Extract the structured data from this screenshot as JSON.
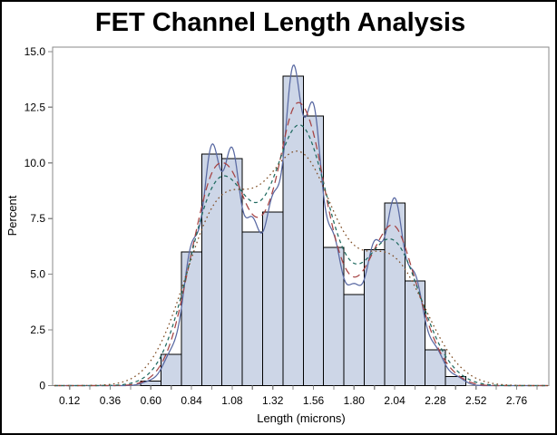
{
  "window": {
    "title": "FET Channel Length Analysis"
  },
  "chart_data": {
    "type": "bar",
    "subtype": "histogram-with-density-curves",
    "title": "FET Channel Length Analysis",
    "xlabel": "Length (microns)",
    "ylabel": "Percent",
    "grid": false,
    "legend": "none",
    "bin_width": 0.12,
    "bin_midpoints": [
      0.6,
      0.72,
      0.84,
      0.96,
      1.08,
      1.2,
      1.32,
      1.44,
      1.56,
      1.68,
      1.8,
      1.92,
      2.04,
      2.16,
      2.28,
      2.4
    ],
    "bin_percents": [
      0.2,
      1.4,
      6.0,
      10.4,
      10.2,
      6.9,
      7.8,
      13.9,
      12.1,
      6.2,
      4.1,
      6.1,
      8.2,
      4.7,
      1.6,
      0.4
    ],
    "x_axis": {
      "min": 0.02,
      "max": 2.95,
      "minor_tick_step": 0.12,
      "minor_tick_first": 0.12,
      "minor_tick_last": 2.88,
      "labels": [
        "0.12",
        "0.36",
        "0.60",
        "0.84",
        "1.08",
        "1.32",
        "1.56",
        "1.80",
        "2.04",
        "2.28",
        "2.52",
        "2.76"
      ],
      "label_values": [
        0.12,
        0.36,
        0.6,
        0.84,
        1.08,
        1.32,
        1.56,
        1.8,
        2.04,
        2.28,
        2.52,
        2.76
      ]
    },
    "y_axis": {
      "min": 0,
      "max": 15.2,
      "labels": [
        "0",
        "2.5",
        "5.0",
        "7.5",
        "10.0",
        "12.5",
        "15.0"
      ],
      "label_values": [
        0,
        2.5,
        5.0,
        7.5,
        10.0,
        12.5,
        15.0
      ]
    },
    "curves": [
      {
        "name": "density-curve-solid-blue",
        "line_style": "solid",
        "dash": "",
        "color": "#5868a2",
        "bandwidth": 0.05
      },
      {
        "name": "density-curve-dashed-red",
        "line_style": "dash",
        "dash": "8,5",
        "color": "#a54242",
        "bandwidth": 0.075
      },
      {
        "name": "density-curve-dashed-teal",
        "line_style": "dash",
        "dash": "4,3.5",
        "color": "#1f6a60",
        "bandwidth": 0.105
      },
      {
        "name": "density-curve-dotted-brown",
        "line_style": "dot",
        "dash": "1.6,3.4",
        "color": "#7e4b21",
        "bandwidth": 0.15
      }
    ],
    "colors": {
      "bar_fill": "#cdd6e7",
      "bar_stroke": "#000000",
      "frame": "#8a8a8a",
      "text": "#000000",
      "background": "#ffffff"
    }
  }
}
